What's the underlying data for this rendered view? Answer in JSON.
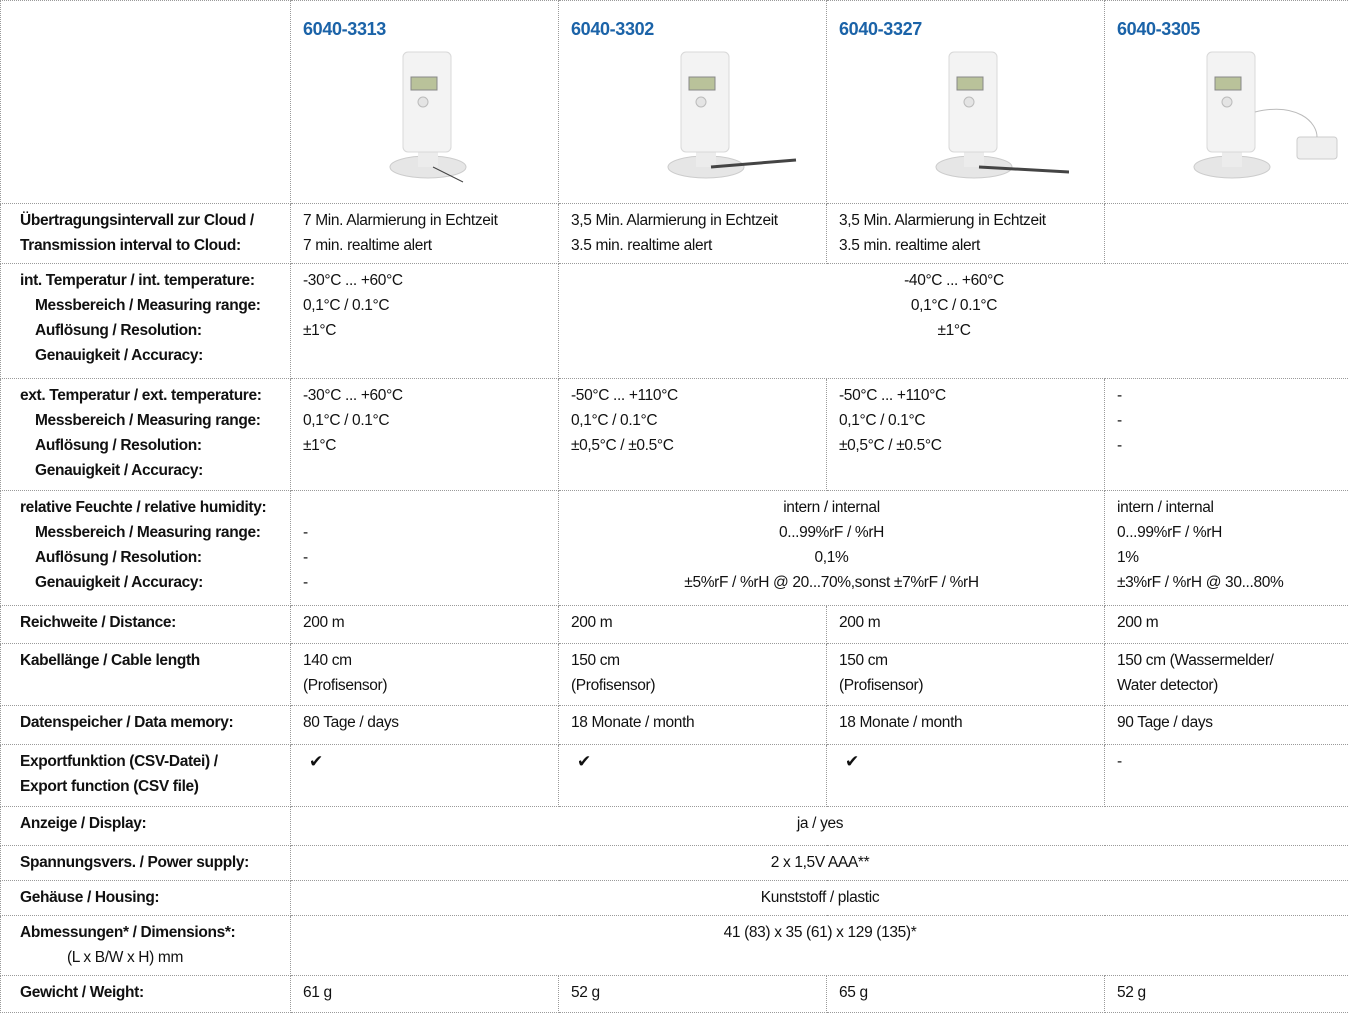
{
  "header": {
    "products": [
      "6040-3313",
      "6040-3302",
      "6040-3327",
      "6040-3305"
    ]
  },
  "rows": [
    {
      "label": [
        "Übertragungsintervall zur Cloud /",
        "Transmission interval to Cloud:"
      ],
      "cells": [
        [
          "7 Min. Alarmierung in Echtzeit",
          "7 min. realtime alert"
        ],
        [
          "3,5 Min. Alarmierung in Echtzeit",
          "3.5 min. realtime alert"
        ],
        [
          "3,5 Min. Alarmierung in Echtzeit",
          "3.5 min. realtime alert"
        ]
      ]
    },
    {
      "label": [
        "int. Temperatur / int. temperature:",
        "Messbereich / Measuring range:",
        "Auflösung / Resolution:",
        "Genauigkeit / Accuracy:"
      ],
      "cells": [
        [
          "-30°C ... +60°C",
          "0,1°C / 0.1°C",
          "±1°C"
        ],
        [
          "-40°C ... +60°C",
          "0,1°C / 0.1°C",
          "±1°C"
        ]
      ]
    },
    {
      "label": [
        "ext. Temperatur / ext. temperature:",
        "Messbereich / Measuring range:",
        "Auflösung / Resolution:",
        "Genauigkeit / Accuracy:"
      ],
      "cells": [
        [
          "-30°C ... +60°C",
          "0,1°C / 0.1°C",
          "±1°C"
        ],
        [
          "-50°C ... +110°C",
          "0,1°C / 0.1°C",
          "±0,5°C / ±0.5°C"
        ],
        [
          "-50°C ... +110°C",
          "0,1°C / 0.1°C",
          "±0,5°C / ±0.5°C"
        ],
        [
          "-",
          "-",
          "-"
        ]
      ]
    },
    {
      "label": [
        "relative Feuchte / relative humidity:",
        "Messbereich / Measuring range:",
        "Auflösung / Resolution:",
        "Genauigkeit / Accuracy:"
      ],
      "cells": [
        [
          "-",
          "-",
          "-"
        ],
        [
          "intern / internal",
          "0...99%rF / %rH",
          "0,1%",
          "±5%rF / %rH @ 20...70%,sonst ±7%rF / %rH"
        ],
        [
          "intern / internal",
          "0...99%rF / %rH",
          "1%",
          "±3%rF / %rH @ 30...80%"
        ]
      ]
    },
    {
      "label": [
        "Reichweite / Distance:"
      ],
      "cells": [
        [
          "200 m"
        ],
        [
          "200 m"
        ],
        [
          "200 m"
        ],
        [
          "200 m"
        ]
      ]
    },
    {
      "label": [
        "Kabellänge / Cable length"
      ],
      "cells": [
        [
          "140 cm",
          "(Profisensor)"
        ],
        [
          "150 cm",
          "(Profisensor)"
        ],
        [
          "150 cm",
          "(Profisensor)"
        ],
        [
          "150 cm  (Wassermelder/",
          "Water detector)"
        ]
      ]
    },
    {
      "label": [
        "Datenspeicher / Data memory:"
      ],
      "cells": [
        [
          "80 Tage / days"
        ],
        [
          "18 Monate / month"
        ],
        [
          "18 Monate / month"
        ],
        [
          "90 Tage / days"
        ]
      ]
    },
    {
      "label": [
        "Exportfunktion (CSV-Datei) /",
        "Export function (CSV file)"
      ],
      "cells": [
        [
          "✔"
        ],
        [
          "✔"
        ],
        [
          "✔"
        ],
        [
          "-"
        ]
      ]
    },
    {
      "label": [
        "Anzeige / Display:"
      ],
      "cells": [
        [
          "ja / yes"
        ]
      ]
    },
    {
      "label": [
        "Spannungsvers. / Power supply:"
      ],
      "cells": [
        [
          "2 x 1,5V AAA**"
        ]
      ]
    },
    {
      "label": [
        "Gehäuse / Housing:"
      ],
      "cells": [
        [
          "Kunststoff / plastic"
        ]
      ]
    },
    {
      "label": [
        "Abmessungen* / Dimensions*:",
        "(L x B/W x H) mm"
      ],
      "cells": [
        [
          "41 (83) x 35 (61) x 129 (135)*"
        ]
      ]
    },
    {
      "label": [
        "Gewicht / Weight:"
      ],
      "cells": [
        [
          "61 g"
        ],
        [
          "52 g"
        ],
        [
          "65 g"
        ],
        [
          "52 g"
        ]
      ]
    }
  ]
}
